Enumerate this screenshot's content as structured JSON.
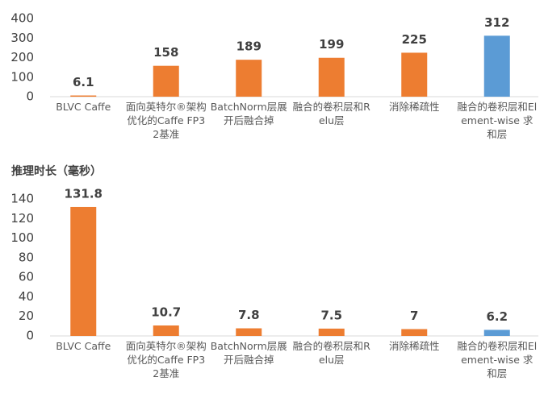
{
  "chart_data": [
    {
      "type": "bar",
      "categories": [
        "BLVC Caffe",
        "面向英特尔®架构优化的Caffe FP32基准",
        "BatchNorm层展开后融合掉",
        "融合的卷积层和Relu层",
        "消除稀疏性",
        "融合的卷积层和Element-wise 求和层"
      ],
      "values": [
        6.1,
        158,
        189,
        199,
        225,
        312
      ],
      "colors": [
        "#ed7d31",
        "#ed7d31",
        "#ed7d31",
        "#ed7d31",
        "#ed7d31",
        "#5b9bd5"
      ],
      "ylim": [
        0,
        400
      ],
      "yticks": [
        0,
        100,
        200,
        300,
        400
      ]
    },
    {
      "type": "bar",
      "y_label": "推理时长（毫秒）",
      "categories": [
        "BLVC Caffe",
        "面向英特尔®架构优化的Caffe FP32基准",
        "BatchNorm层展开后融合掉",
        "融合的卷积层和Relu层",
        "消除稀疏性",
        "融合的卷积层和Element-wise 求和层"
      ],
      "values": [
        131.8,
        10.7,
        7.8,
        7.5,
        7,
        6.2
      ],
      "colors": [
        "#ed7d31",
        "#ed7d31",
        "#ed7d31",
        "#ed7d31",
        "#ed7d31",
        "#5b9bd5"
      ],
      "ylim": [
        0,
        140
      ],
      "yticks": [
        0,
        20,
        40,
        60,
        80,
        100,
        120,
        140
      ]
    }
  ]
}
